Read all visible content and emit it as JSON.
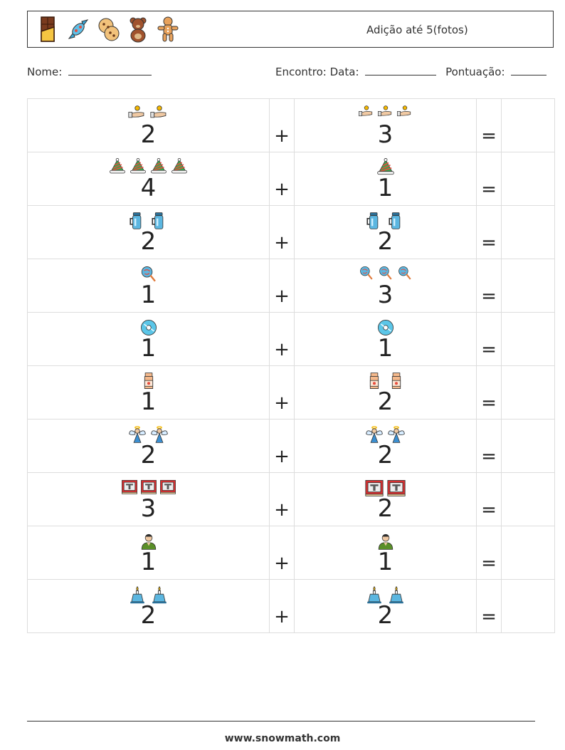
{
  "header": {
    "title": "Adição até 5(fotos)",
    "icons": [
      "chocolate-bar-icon",
      "candy-icon",
      "cookies-icon",
      "teddy-bear-icon",
      "gingerbread-man-icon"
    ]
  },
  "info": {
    "name_label": "Nome:",
    "meeting_label": "Encontro: Data:",
    "score_label": "Pontuação:"
  },
  "symbols": {
    "plus": "+",
    "equals": "="
  },
  "problems": [
    {
      "a": {
        "count": 2,
        "label": "2",
        "icon": "hand-giving-coin-icon"
      },
      "b": {
        "count": 3,
        "label": "3",
        "icon": "hand-giving-coin-icon"
      }
    },
    {
      "a": {
        "count": 4,
        "label": "4",
        "icon": "santa-hat-icon"
      },
      "b": {
        "count": 1,
        "label": "1",
        "icon": "santa-hat-icon"
      }
    },
    {
      "a": {
        "count": 2,
        "label": "2",
        "icon": "thermos-icon"
      },
      "b": {
        "count": 2,
        "label": "2",
        "icon": "thermos-icon"
      }
    },
    {
      "a": {
        "count": 1,
        "label": "1",
        "icon": "lollipop-icon"
      },
      "b": {
        "count": 3,
        "label": "3",
        "icon": "lollipop-icon"
      }
    },
    {
      "a": {
        "count": 1,
        "label": "1",
        "icon": "compact-disc-icon"
      },
      "b": {
        "count": 1,
        "label": "1",
        "icon": "compact-disc-icon"
      }
    },
    {
      "a": {
        "count": 1,
        "label": "1",
        "icon": "milk-bottle-icon"
      },
      "b": {
        "count": 2,
        "label": "2",
        "icon": "milk-bottle-icon"
      }
    },
    {
      "a": {
        "count": 2,
        "label": "2",
        "icon": "angel-icon"
      },
      "b": {
        "count": 2,
        "label": "2",
        "icon": "angel-icon"
      }
    },
    {
      "a": {
        "count": 3,
        "label": "3",
        "icon": "red-book-icon"
      },
      "b": {
        "count": 2,
        "label": "2",
        "icon": "red-book-icon"
      }
    },
    {
      "a": {
        "count": 1,
        "label": "1",
        "icon": "man-avatar-icon"
      },
      "b": {
        "count": 1,
        "label": "1",
        "icon": "man-avatar-icon"
      }
    },
    {
      "a": {
        "count": 2,
        "label": "2",
        "icon": "blue-candle-icon"
      },
      "b": {
        "count": 2,
        "label": "2",
        "icon": "blue-candle-icon"
      }
    }
  ],
  "footer": {
    "url": "www.snowmath.com"
  }
}
